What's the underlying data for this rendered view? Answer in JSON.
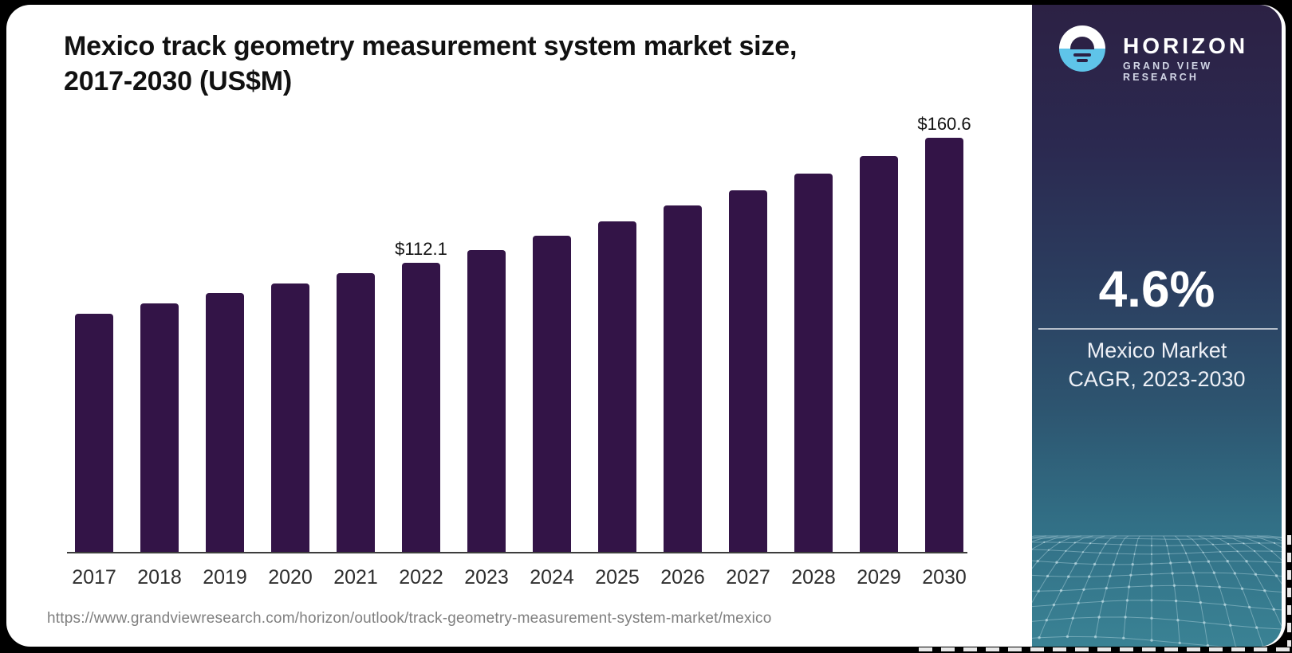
{
  "header": {
    "title_line1": "Mexico track geometry measurement system market size,",
    "title_line2": "2017-2030 (US$M)"
  },
  "footer": {
    "source_url": "https://www.grandviewresearch.com/horizon/outlook/track-geometry-measurement-system-market/mexico"
  },
  "chart_data": {
    "type": "bar",
    "title": "Mexico track geometry measurement system market size, 2017-2030 (US$M)",
    "categories": [
      "2017",
      "2018",
      "2019",
      "2020",
      "2021",
      "2022",
      "2023",
      "2024",
      "2025",
      "2026",
      "2027",
      "2028",
      "2029",
      "2030"
    ],
    "values": [
      92.4,
      96.3,
      100.3,
      104.2,
      108.1,
      112.1,
      117.2,
      122.6,
      128.3,
      134.2,
      140.3,
      146.8,
      153.5,
      160.6
    ],
    "value_unit": "US$M",
    "labeled_points": [
      {
        "category": "2022",
        "label": "$112.1"
      },
      {
        "category": "2030",
        "label": "$160.6"
      }
    ],
    "xlabel": "",
    "ylabel": "",
    "ylim": [
      0,
      170
    ],
    "grid": false,
    "legend": false,
    "bar_color": "#331447",
    "axis_color": "#3d3d3d",
    "label_color": "#111111"
  },
  "sidebar": {
    "brand": {
      "name": "HORIZON",
      "tagline": "GRAND VIEW RESEARCH"
    },
    "stat": {
      "value": "4.6%",
      "caption_line1": "Mexico Market",
      "caption_line2": "CAGR, 2023-2030"
    },
    "colors": {
      "gradient_top": "#2c2144",
      "gradient_bottom": "#3a8294",
      "logo_blue": "#5fc4e9",
      "logo_dark": "#2c2145"
    }
  }
}
